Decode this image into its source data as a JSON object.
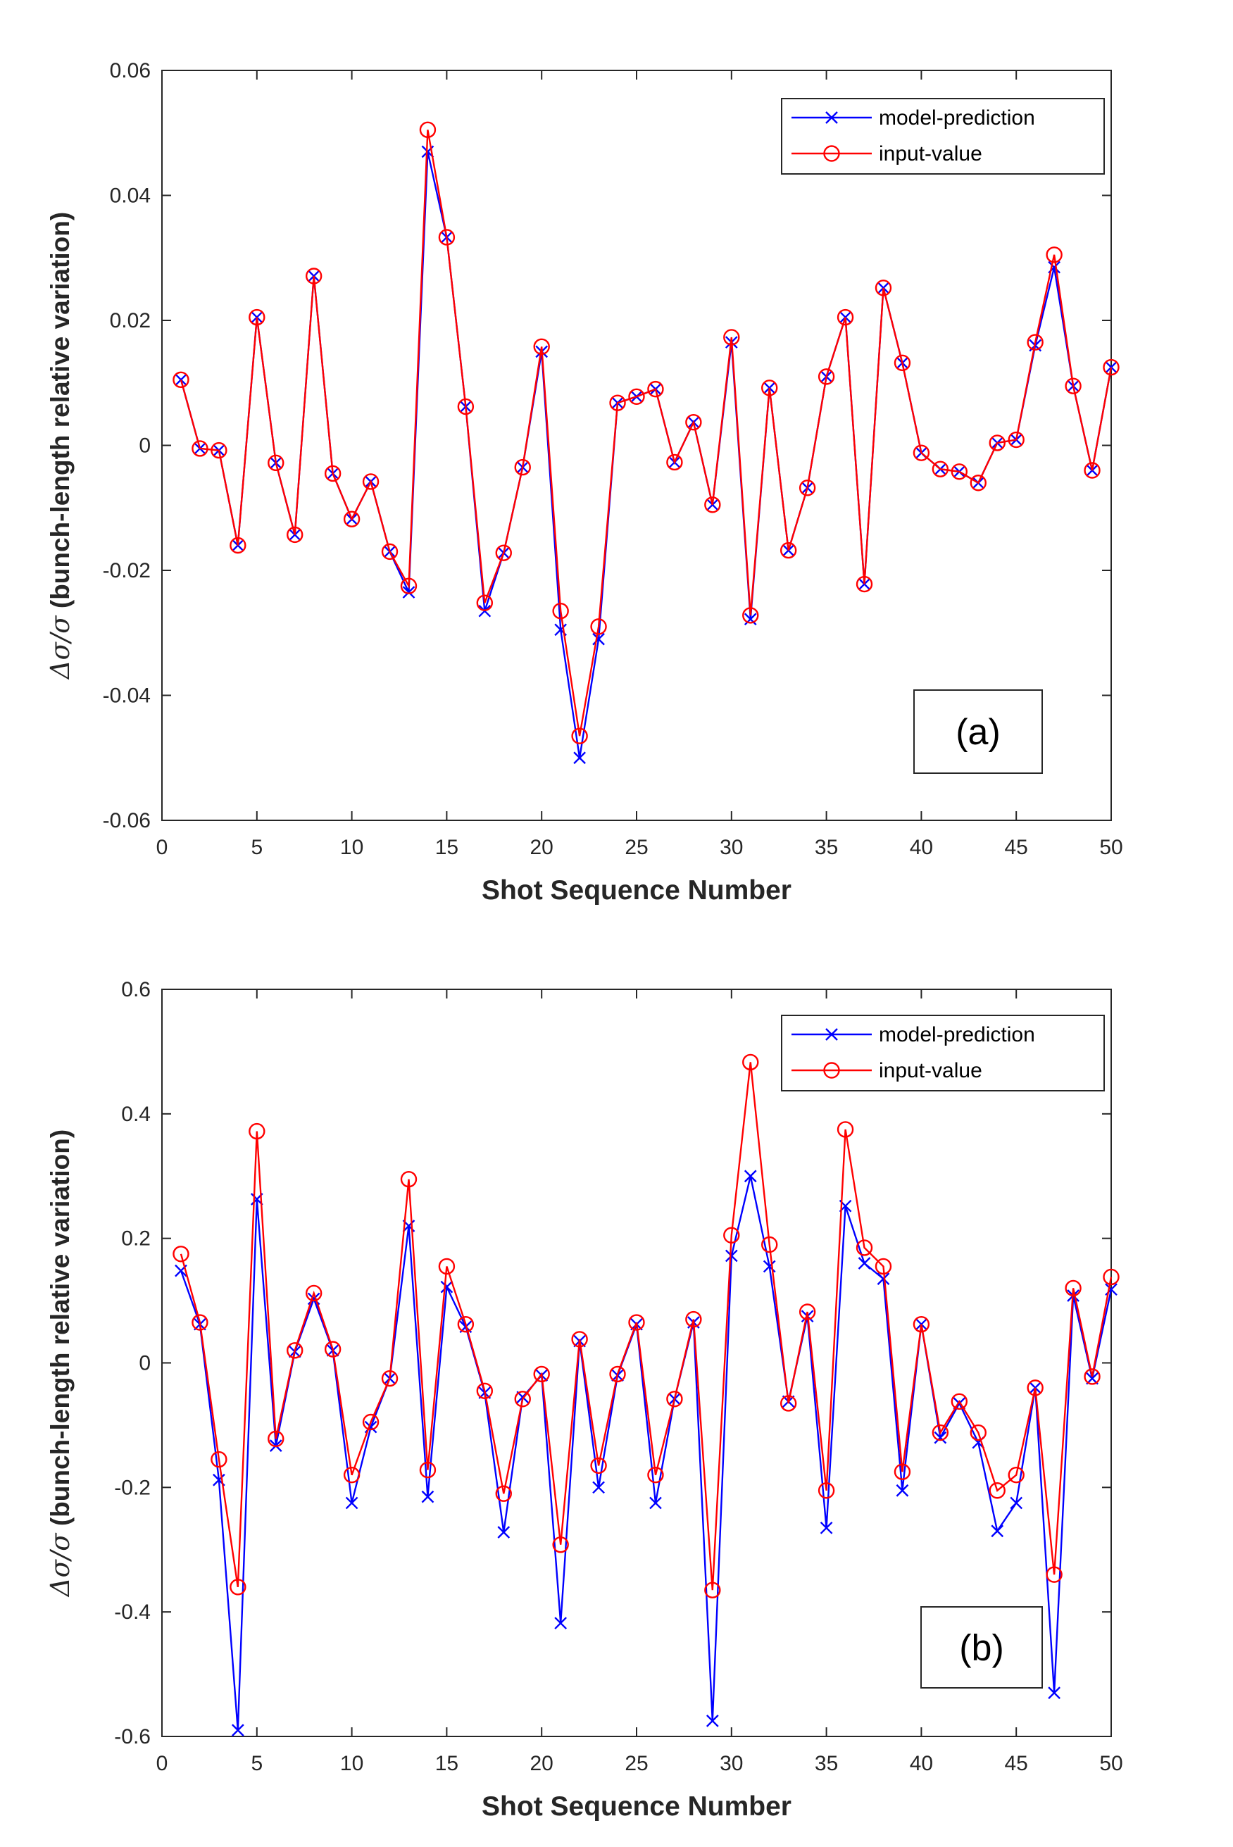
{
  "chart_data": [
    {
      "type": "line",
      "panel_label": "(a)",
      "xlabel": "Shot Sequence Number",
      "ylabel_prefix": "Δσ/σ",
      "ylabel_rest": " (bunch-length relative variation)",
      "xlim": [
        0,
        50
      ],
      "ylim": [
        -0.06,
        0.06
      ],
      "xticks": [
        0,
        5,
        10,
        15,
        20,
        25,
        30,
        35,
        40,
        45,
        50
      ],
      "xtick_labels": [
        "0",
        "5",
        "10",
        "15",
        "20",
        "25",
        "30",
        "35",
        "40",
        "45",
        "50"
      ],
      "yticks": [
        -0.06,
        -0.04,
        -0.02,
        0,
        0.02,
        0.04,
        0.06
      ],
      "ytick_labels": [
        "-0.06",
        "-0.04",
        "-0.02",
        "0",
        "0.02",
        "0.04",
        "0.06"
      ],
      "grid": false,
      "legend_position": "top-right",
      "x": [
        1,
        2,
        3,
        4,
        5,
        6,
        7,
        8,
        9,
        10,
        11,
        12,
        13,
        14,
        15,
        16,
        17,
        18,
        19,
        20,
        21,
        22,
        23,
        24,
        25,
        26,
        27,
        28,
        29,
        30,
        31,
        32,
        33,
        34,
        35,
        36,
        37,
        38,
        39,
        40,
        41,
        42,
        43,
        44,
        45,
        46,
        47,
        48,
        49,
        50
      ],
      "series": [
        {
          "name": "model-prediction",
          "color": "#0000ff",
          "marker": "x",
          "values": [
            0.0105,
            -0.0005,
            -0.0008,
            -0.016,
            0.0205,
            -0.0028,
            -0.0143,
            0.0271,
            -0.0045,
            -0.0118,
            -0.0058,
            -0.017,
            -0.0235,
            0.047,
            0.0333,
            0.0062,
            -0.0265,
            -0.0172,
            -0.0035,
            0.015,
            -0.0295,
            -0.05,
            -0.031,
            0.0068,
            0.0078,
            0.009,
            -0.0027,
            0.0037,
            -0.0095,
            0.0165,
            -0.0278,
            0.0092,
            -0.0168,
            -0.0068,
            0.011,
            0.0205,
            -0.0222,
            0.0252,
            0.0132,
            -0.0012,
            -0.0038,
            -0.0042,
            -0.006,
            0.0004,
            0.0009,
            0.016,
            0.0285,
            0.0095,
            -0.004,
            0.0125
          ]
        },
        {
          "name": "input-value",
          "color": "#ff0000",
          "marker": "o",
          "values": [
            0.0105,
            -0.0005,
            -0.0008,
            -0.016,
            0.0205,
            -0.0028,
            -0.0143,
            0.0271,
            -0.0045,
            -0.0118,
            -0.0058,
            -0.017,
            -0.0225,
            0.0505,
            0.0333,
            0.0062,
            -0.0252,
            -0.0172,
            -0.0035,
            0.0158,
            -0.0265,
            -0.0465,
            -0.029,
            0.0068,
            0.0078,
            0.009,
            -0.0027,
            0.0037,
            -0.0095,
            0.0173,
            -0.0272,
            0.0092,
            -0.0168,
            -0.0068,
            0.011,
            0.0205,
            -0.0222,
            0.0252,
            0.0132,
            -0.0012,
            -0.0038,
            -0.0042,
            -0.006,
            0.0004,
            0.0009,
            0.0165,
            0.0305,
            0.0095,
            -0.004,
            0.0125
          ]
        }
      ]
    },
    {
      "type": "line",
      "panel_label": "(b)",
      "xlabel": "Shot Sequence Number",
      "ylabel_prefix": "Δσ/σ",
      "ylabel_rest": " (bunch-length relative variation)",
      "xlim": [
        0,
        50
      ],
      "ylim": [
        -0.6,
        0.6
      ],
      "xticks": [
        0,
        5,
        10,
        15,
        20,
        25,
        30,
        35,
        40,
        45,
        50
      ],
      "xtick_labels": [
        "0",
        "5",
        "10",
        "15",
        "20",
        "25",
        "30",
        "35",
        "40",
        "45",
        "50"
      ],
      "yticks": [
        -0.6,
        -0.4,
        -0.2,
        0,
        0.2,
        0.4,
        0.6
      ],
      "ytick_labels": [
        "-0.6",
        "-0.4",
        "-0.2",
        "0",
        "0.2",
        "0.4",
        "0.6"
      ],
      "grid": false,
      "legend_position": "top-right",
      "x": [
        1,
        2,
        3,
        4,
        5,
        6,
        7,
        8,
        9,
        10,
        11,
        12,
        13,
        14,
        15,
        16,
        17,
        18,
        19,
        20,
        21,
        22,
        23,
        24,
        25,
        26,
        27,
        28,
        29,
        30,
        31,
        32,
        33,
        34,
        35,
        36,
        37,
        38,
        39,
        40,
        41,
        42,
        43,
        44,
        45,
        46,
        47,
        48,
        49,
        50
      ],
      "series": [
        {
          "name": "model-prediction",
          "color": "#0000ff",
          "marker": "x",
          "values": [
            0.148,
            0.062,
            -0.188,
            -0.59,
            0.263,
            -0.133,
            0.018,
            0.103,
            0.02,
            -0.225,
            -0.103,
            -0.025,
            0.22,
            -0.215,
            0.122,
            0.058,
            -0.048,
            -0.272,
            -0.055,
            -0.02,
            -0.418,
            0.035,
            -0.2,
            -0.02,
            0.062,
            -0.225,
            -0.058,
            0.065,
            -0.575,
            0.172,
            0.3,
            0.155,
            -0.062,
            0.075,
            -0.265,
            0.252,
            0.16,
            0.135,
            -0.205,
            0.062,
            -0.12,
            -0.065,
            -0.128,
            -0.27,
            -0.225,
            -0.04,
            -0.53,
            0.108,
            -0.025,
            0.118
          ]
        },
        {
          "name": "input-value",
          "color": "#ff0000",
          "marker": "o",
          "values": [
            0.175,
            0.065,
            -0.155,
            -0.36,
            0.372,
            -0.122,
            0.02,
            0.112,
            0.022,
            -0.18,
            -0.095,
            -0.025,
            0.295,
            -0.172,
            0.155,
            0.062,
            -0.045,
            -0.21,
            -0.058,
            -0.018,
            -0.292,
            0.038,
            -0.165,
            -0.018,
            0.065,
            -0.18,
            -0.058,
            0.07,
            -0.365,
            0.205,
            0.483,
            0.19,
            -0.065,
            0.082,
            -0.205,
            0.375,
            0.185,
            0.155,
            -0.175,
            0.062,
            -0.112,
            -0.062,
            -0.112,
            -0.205,
            -0.18,
            -0.04,
            -0.34,
            0.12,
            -0.022,
            0.138
          ]
        }
      ]
    }
  ]
}
